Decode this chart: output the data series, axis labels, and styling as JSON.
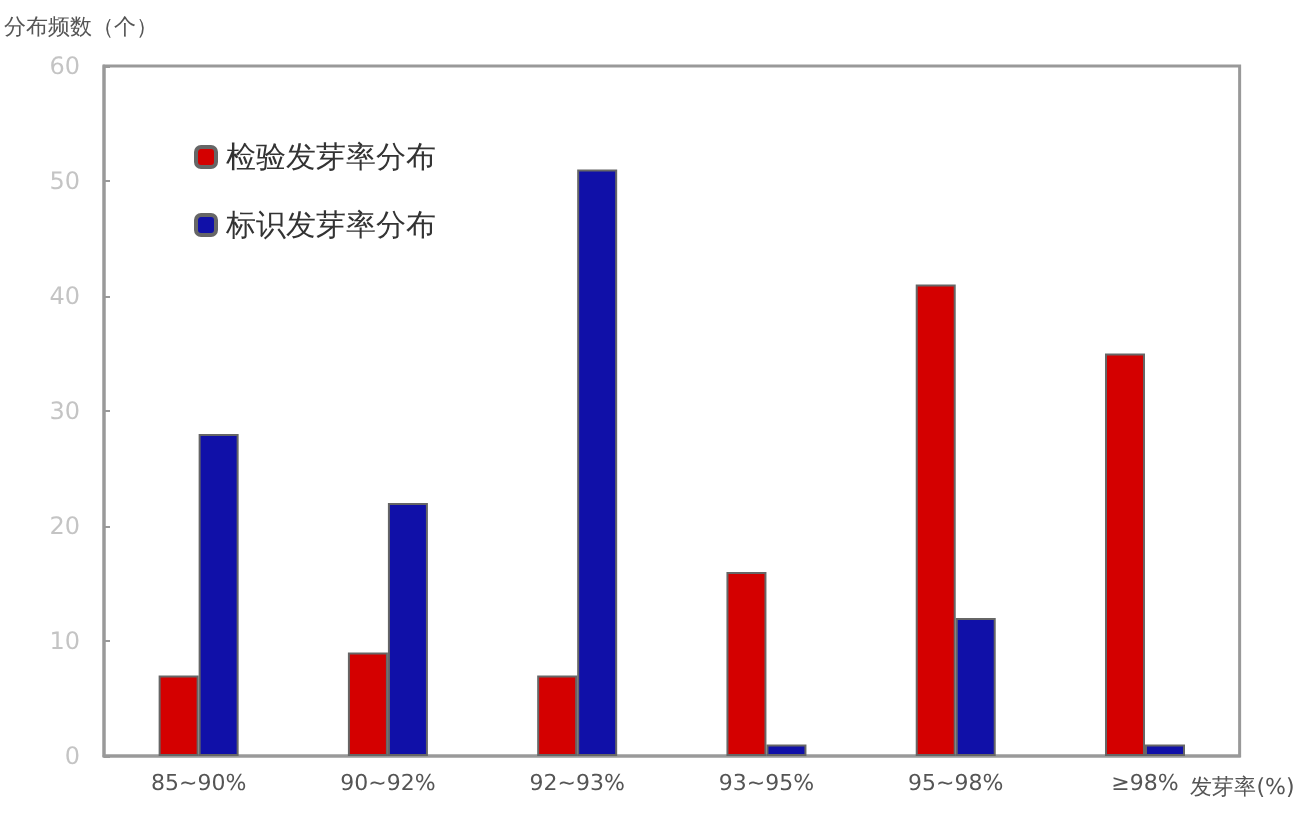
{
  "chart_data": {
    "type": "bar",
    "ylabel": "分布频数（个）",
    "xlabel": "发芽率(%)",
    "categories": [
      "85~90%",
      "90~92%",
      "92~93%",
      "93~95%",
      "95~98%",
      "≥98%"
    ],
    "series": [
      {
        "name": "检验发芽率分布",
        "color": "#d40000",
        "values": [
          7,
          9,
          7,
          16,
          41,
          35
        ]
      },
      {
        "name": "标识发芽率分布",
        "color": "#1010a8",
        "values": [
          28,
          22,
          51,
          1,
          12,
          1
        ]
      }
    ],
    "ylim": [
      0,
      60
    ],
    "yticks": [
      0,
      10,
      20,
      30,
      40,
      50,
      60
    ],
    "grid": false,
    "legend": "top left"
  }
}
